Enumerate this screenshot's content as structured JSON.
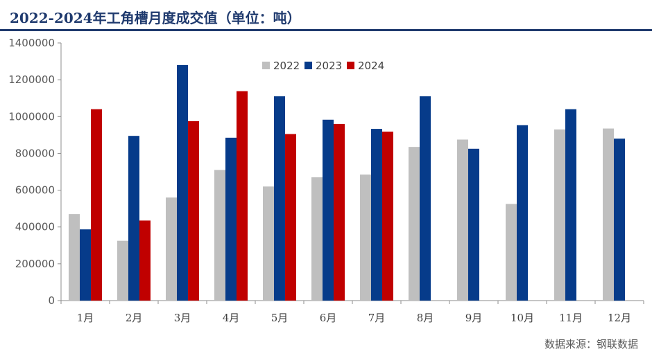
{
  "title": "2022-2024年工角槽月度成交值（单位：吨）",
  "source": "数据来源：钢联数据",
  "chart_data": {
    "type": "bar",
    "categories": [
      "1月",
      "2月",
      "3月",
      "4月",
      "5月",
      "6月",
      "7月",
      "8月",
      "9月",
      "10月",
      "11月",
      "12月"
    ],
    "series": [
      {
        "name": "2022",
        "color": "#bfbfbf",
        "values": [
          470000,
          325000,
          560000,
          710000,
          620000,
          670000,
          685000,
          835000,
          875000,
          525000,
          930000,
          935000
        ]
      },
      {
        "name": "2023",
        "color": "#063b8a",
        "values": [
          387000,
          895000,
          1280000,
          885000,
          1110000,
          983000,
          933000,
          1110000,
          825000,
          953000,
          1040000,
          880000
        ]
      },
      {
        "name": "2024",
        "color": "#c00000",
        "values": [
          1040000,
          435000,
          975000,
          1138000,
          905000,
          960000,
          918000,
          null,
          null,
          null,
          null,
          null
        ]
      }
    ],
    "ylim": [
      0,
      1400000
    ],
    "yticks": [
      0,
      200000,
      400000,
      600000,
      800000,
      1000000,
      1200000,
      1400000
    ],
    "ytick_labels": [
      "0",
      "200000",
      "400000",
      "600000",
      "800000",
      "1000000",
      "1200000",
      "1400000"
    ],
    "legend_position": "top-center",
    "grid": false
  }
}
